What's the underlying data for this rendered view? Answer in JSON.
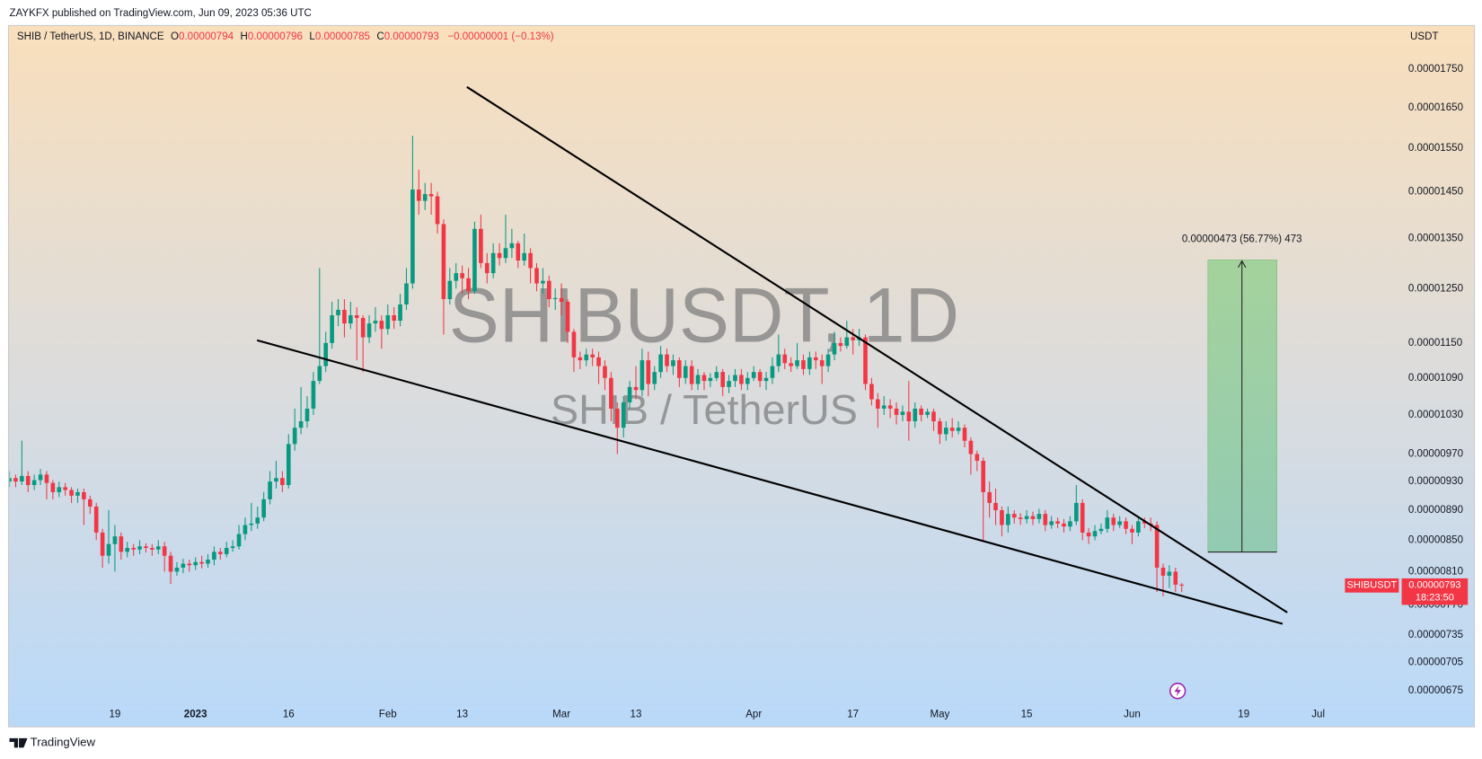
{
  "header": {
    "publisher": "ZAYKFX published on TradingView.com, Jun 09, 2023 05:36 UTC",
    "symbol": "SHIB / TetherUS, 1D, BINANCE",
    "fields": [
      {
        "key": "O",
        "value": "0.00000794"
      },
      {
        "key": "H",
        "value": "0.00000796"
      },
      {
        "key": "L",
        "value": "0.00000785"
      },
      {
        "key": "C",
        "value": "0.00000793"
      }
    ],
    "change": "−0.00000001 (−0.13%)",
    "currency": "USDT"
  },
  "watermark": {
    "ticker": "SHIBUSDT, 1D",
    "name": "SHIB / TetherUS"
  },
  "price_tag": {
    "symbol": "SHIBUSDT",
    "price": "0.00000793",
    "countdown": "18:23:50"
  },
  "measure_label": "0.00000473 (56.77%) 473",
  "footer": {
    "brand": "TradingView"
  },
  "chart_data": {
    "type": "candlestick",
    "log_scale": true,
    "grid": false,
    "up_color": "#089981",
    "down_color": "#f23645",
    "xlim": [
      "2022-12-02",
      "2023-07-14"
    ],
    "ylim": [
      6.63e-06,
      1.871e-05
    ],
    "xticks": [
      {
        "value": "2022-12-19",
        "label": "19"
      },
      {
        "value": "2023-01-01",
        "label": "2023",
        "bold": true
      },
      {
        "value": "2023-01-16",
        "label": "16"
      },
      {
        "value": "2023-02-01",
        "label": "Feb"
      },
      {
        "value": "2023-02-13",
        "label": "13"
      },
      {
        "value": "2023-03-01",
        "label": "Mar"
      },
      {
        "value": "2023-03-13",
        "label": "13"
      },
      {
        "value": "2023-04-01",
        "label": "Apr"
      },
      {
        "value": "2023-04-17",
        "label": "17"
      },
      {
        "value": "2023-05-01",
        "label": "May"
      },
      {
        "value": "2023-05-15",
        "label": "15"
      },
      {
        "value": "2023-06-01",
        "label": "Jun"
      },
      {
        "value": "2023-06-19",
        "label": "19"
      },
      {
        "value": "2023-07-01",
        "label": "Jul"
      }
    ],
    "yticks": [
      {
        "value": 1.75e-05,
        "label": "0.00001750"
      },
      {
        "value": 1.65e-05,
        "label": "0.00001650"
      },
      {
        "value": 1.55e-05,
        "label": "0.00001550"
      },
      {
        "value": 1.45e-05,
        "label": "0.00001450"
      },
      {
        "value": 1.35e-05,
        "label": "0.00001350"
      },
      {
        "value": 1.25e-05,
        "label": "0.00001250"
      },
      {
        "value": 1.15e-05,
        "label": "0.00001150"
      },
      {
        "value": 1.09e-05,
        "label": "0.00001090"
      },
      {
        "value": 1.03e-05,
        "label": "0.00001030"
      },
      {
        "value": 9.7e-06,
        "label": "0.00000970"
      },
      {
        "value": 9.3e-06,
        "label": "0.00000930"
      },
      {
        "value": 8.9e-06,
        "label": "0.00000890"
      },
      {
        "value": 8.5e-06,
        "label": "0.00000850"
      },
      {
        "value": 8.1e-06,
        "label": "0.00000810"
      },
      {
        "value": 7.7e-06,
        "label": "0.00000770"
      },
      {
        "value": 7.35e-06,
        "label": "0.00000735"
      },
      {
        "value": 7.05e-06,
        "label": "0.00000705"
      },
      {
        "value": 6.75e-06,
        "label": "0.00000675"
      }
    ],
    "x": [
      "2022-12-02",
      "2022-12-03",
      "2022-12-04",
      "2022-12-05",
      "2022-12-06",
      "2022-12-07",
      "2022-12-08",
      "2022-12-09",
      "2022-12-10",
      "2022-12-11",
      "2022-12-12",
      "2022-12-13",
      "2022-12-14",
      "2022-12-15",
      "2022-12-16",
      "2022-12-17",
      "2022-12-18",
      "2022-12-19",
      "2022-12-20",
      "2022-12-21",
      "2022-12-22",
      "2022-12-23",
      "2022-12-24",
      "2022-12-25",
      "2022-12-26",
      "2022-12-27",
      "2022-12-28",
      "2022-12-29",
      "2022-12-30",
      "2022-12-31",
      "2023-01-01",
      "2023-01-02",
      "2023-01-03",
      "2023-01-04",
      "2023-01-05",
      "2023-01-06",
      "2023-01-07",
      "2023-01-08",
      "2023-01-09",
      "2023-01-10",
      "2023-01-11",
      "2023-01-12",
      "2023-01-13",
      "2023-01-14",
      "2023-01-15",
      "2023-01-16",
      "2023-01-17",
      "2023-01-18",
      "2023-01-19",
      "2023-01-20",
      "2023-01-21",
      "2023-01-22",
      "2023-01-23",
      "2023-01-24",
      "2023-01-25",
      "2023-01-26",
      "2023-01-27",
      "2023-01-28",
      "2023-01-29",
      "2023-01-30",
      "2023-01-31",
      "2023-02-01",
      "2023-02-02",
      "2023-02-03",
      "2023-02-04",
      "2023-02-05",
      "2023-02-06",
      "2023-02-07",
      "2023-02-08",
      "2023-02-09",
      "2023-02-10",
      "2023-02-11",
      "2023-02-12",
      "2023-02-13",
      "2023-02-14",
      "2023-02-15",
      "2023-02-16",
      "2023-02-17",
      "2023-02-18",
      "2023-02-19",
      "2023-02-20",
      "2023-02-21",
      "2023-02-22",
      "2023-02-23",
      "2023-02-24",
      "2023-02-25",
      "2023-02-26",
      "2023-02-27",
      "2023-02-28",
      "2023-03-01",
      "2023-03-02",
      "2023-03-03",
      "2023-03-04",
      "2023-03-05",
      "2023-03-06",
      "2023-03-07",
      "2023-03-08",
      "2023-03-09",
      "2023-03-10",
      "2023-03-11",
      "2023-03-12",
      "2023-03-13",
      "2023-03-14",
      "2023-03-15",
      "2023-03-16",
      "2023-03-17",
      "2023-03-18",
      "2023-03-19",
      "2023-03-20",
      "2023-03-21",
      "2023-03-22",
      "2023-03-23",
      "2023-03-24",
      "2023-03-25",
      "2023-03-26",
      "2023-03-27",
      "2023-03-28",
      "2023-03-29",
      "2023-03-30",
      "2023-03-31",
      "2023-04-01",
      "2023-04-02",
      "2023-04-03",
      "2023-04-04",
      "2023-04-05",
      "2023-04-06",
      "2023-04-07",
      "2023-04-08",
      "2023-04-09",
      "2023-04-10",
      "2023-04-11",
      "2023-04-12",
      "2023-04-13",
      "2023-04-14",
      "2023-04-15",
      "2023-04-16",
      "2023-04-17",
      "2023-04-18",
      "2023-04-19",
      "2023-04-20",
      "2023-04-21",
      "2023-04-22",
      "2023-04-23",
      "2023-04-24",
      "2023-04-25",
      "2023-04-26",
      "2023-04-27",
      "2023-04-28",
      "2023-04-29",
      "2023-04-30",
      "2023-05-01",
      "2023-05-02",
      "2023-05-03",
      "2023-05-04",
      "2023-05-05",
      "2023-05-06",
      "2023-05-07",
      "2023-05-08",
      "2023-05-09",
      "2023-05-10",
      "2023-05-11",
      "2023-05-12",
      "2023-05-13",
      "2023-05-14",
      "2023-05-15",
      "2023-05-16",
      "2023-05-17",
      "2023-05-18",
      "2023-05-19",
      "2023-05-20",
      "2023-05-21",
      "2023-05-22",
      "2023-05-23",
      "2023-05-24",
      "2023-05-25",
      "2023-05-26",
      "2023-05-27",
      "2023-05-28",
      "2023-05-29",
      "2023-05-30",
      "2023-05-31",
      "2023-06-01",
      "2023-06-02",
      "2023-06-03",
      "2023-06-04",
      "2023-06-05",
      "2023-06-06",
      "2023-06-07",
      "2023-06-08",
      "2023-06-09"
    ],
    "open": [
      9.3e-06,
      9.35e-06,
      9.3e-06,
      9.38e-06,
      9.25e-06,
      9.32e-06,
      9.4e-06,
      9.28e-06,
      9.15e-06,
      9.22e-06,
      9.18e-06,
      9.1e-06,
      9.15e-06,
      9.05e-06,
      8.95e-06,
      8.6e-06,
      8.3e-06,
      8.45e-06,
      8.55e-06,
      8.35e-06,
      8.4e-06,
      8.38e-06,
      8.42e-06,
      8.4e-06,
      8.38e-06,
      8.42e-06,
      8.3e-06,
      8.1e-06,
      8.15e-06,
      8.2e-06,
      8.18e-06,
      8.22e-06,
      8.2e-06,
      8.25e-06,
      8.35e-06,
      8.32e-06,
      8.4e-06,
      8.42e-06,
      8.58e-06,
      8.7e-06,
      8.72e-06,
      8.8e-06,
      9.05e-06,
      9.3e-06,
      9.35e-06,
      9.25e-06,
      9.85e-06,
      1.01e-05,
      1.02e-05,
      1.04e-05,
      1.085e-05,
      1.11e-05,
      1.15e-05,
      1.2e-05,
      1.21e-05,
      1.185e-05,
      1.2e-05,
      1.195e-05,
      1.16e-05,
      1.185e-05,
      1.19e-05,
      1.175e-05,
      1.2e-05,
      1.19e-05,
      1.22e-05,
      1.26e-05,
      1.455e-05,
      1.43e-05,
      1.445e-05,
      1.44e-05,
      1.38e-05,
      1.23e-05,
      1.265e-05,
      1.28e-05,
      1.27e-05,
      1.245e-05,
      1.37e-05,
      1.3e-05,
      1.28e-05,
      1.32e-05,
      1.31e-05,
      1.33e-05,
      1.34e-05,
      1.305e-05,
      1.32e-05,
      1.29e-05,
      1.26e-05,
      1.265e-05,
      1.23e-05,
      1.232e-05,
      1.225e-05,
      1.17e-05,
      1.125e-05,
      1.12e-05,
      1.13e-05,
      1.125e-05,
      1.11e-05,
      1.09e-05,
      1.04e-05,
      1.01e-05,
      1.05e-05,
      1.075e-05,
      1.07e-05,
      1.12e-05,
      1.08e-05,
      1.1e-05,
      1.13e-05,
      1.11e-05,
      1.12e-05,
      1.09e-05,
      1.11e-05,
      1.08e-05,
      1.095e-05,
      1.085e-05,
      1.09e-05,
      1.1e-05,
      1.075e-05,
      1.085e-05,
      1.095e-05,
      1.08e-05,
      1.09e-05,
      1.1e-05,
      1.085e-05,
      1.09e-05,
      1.11e-05,
      1.13e-05,
      1.115e-05,
      1.11e-05,
      1.12e-05,
      1.105e-05,
      1.125e-05,
      1.12e-05,
      1.11e-05,
      1.13e-05,
      1.15e-05,
      1.145e-05,
      1.16e-05,
      1.155e-05,
      1.16e-05,
      1.08e-05,
      1.055e-05,
      1.04e-05,
      1.045e-05,
      1.04e-05,
      1.03e-05,
      1.035e-05,
      1.02e-05,
      1.04e-05,
      1.03e-05,
      1.035e-05,
      1.02e-05,
      1e-05,
      1.01e-05,
      1.005e-05,
      1.01e-05,
      9.9e-06,
      9.7e-06,
      9.6e-06,
      9.15e-06,
      9e-06,
      8.9e-06,
      8.7e-06,
      8.85e-06,
      8.8e-06,
      8.78e-06,
      8.82e-06,
      8.78e-06,
      8.85e-06,
      8.7e-06,
      8.75e-06,
      8.72e-06,
      8.68e-06,
      8.75e-06,
      9e-06,
      8.6e-06,
      8.55e-06,
      8.62e-06,
      8.65e-06,
      8.8e-06,
      8.7e-06,
      8.75e-06,
      8.65e-06,
      8.6e-06,
      8.75e-06,
      8.72e-06,
      8.7e-06,
      8.15e-06,
      8.05e-06,
      8.1e-06,
      7.94e-06
    ],
    "high": [
      9.45e-06,
      9.4e-06,
      9.9e-06,
      9.45e-06,
      9.4e-06,
      9.48e-06,
      9.45e-06,
      9.32e-06,
      9.3e-06,
      9.28e-06,
      9.22e-06,
      9.2e-06,
      9.2e-06,
      9.1e-06,
      9e-06,
      8.65e-06,
      8.9e-06,
      8.7e-06,
      8.6e-06,
      8.48e-06,
      8.45e-06,
      8.5e-06,
      8.46e-06,
      8.45e-06,
      8.5e-06,
      8.48e-06,
      8.35e-06,
      8.22e-06,
      8.26e-06,
      8.25e-06,
      8.28e-06,
      8.3e-06,
      8.32e-06,
      8.42e-06,
      8.4e-06,
      8.48e-06,
      8.5e-06,
      8.7e-06,
      8.8e-06,
      9e-06,
      8.95e-06,
      9.15e-06,
      9.45e-06,
      9.6e-06,
      9.45e-06,
      1e-05,
      1.04e-05,
      1.075e-05,
      1.06e-05,
      1.1e-05,
      1.29e-05,
      1.17e-05,
      1.225e-05,
      1.23e-05,
      1.23e-05,
      1.225e-05,
      1.215e-05,
      1.2e-05,
      1.2e-05,
      1.215e-05,
      1.2e-05,
      1.22e-05,
      1.215e-05,
      1.24e-05,
      1.29e-05,
      1.58e-05,
      1.5e-05,
      1.47e-05,
      1.47e-05,
      1.45e-05,
      1.39e-05,
      1.29e-05,
      1.3e-05,
      1.295e-05,
      1.29e-05,
      1.385e-05,
      1.4e-05,
      1.32e-05,
      1.34e-05,
      1.34e-05,
      1.4e-05,
      1.37e-05,
      1.345e-05,
      1.36e-05,
      1.33e-05,
      1.3e-05,
      1.29e-05,
      1.275e-05,
      1.25e-05,
      1.26e-05,
      1.23e-05,
      1.175e-05,
      1.135e-05,
      1.14e-05,
      1.14e-05,
      1.135e-05,
      1.12e-05,
      1.1e-05,
      1.05e-05,
      1.06e-05,
      1.085e-05,
      1.11e-05,
      1.14e-05,
      1.135e-05,
      1.11e-05,
      1.145e-05,
      1.14e-05,
      1.13e-05,
      1.125e-05,
      1.12e-05,
      1.12e-05,
      1.105e-05,
      1.1e-05,
      1.098e-05,
      1.11e-05,
      1.105e-05,
      1.095e-05,
      1.105e-05,
      1.105e-05,
      1.1e-05,
      1.11e-05,
      1.105e-05,
      1.1e-05,
      1.125e-05,
      1.165e-05,
      1.14e-05,
      1.125e-05,
      1.15e-05,
      1.13e-05,
      1.135e-05,
      1.135e-05,
      1.13e-05,
      1.14e-05,
      1.17e-05,
      1.16e-05,
      1.19e-05,
      1.175e-05,
      1.175e-05,
      1.165e-05,
      1.09e-05,
      1.065e-05,
      1.06e-05,
      1.055e-05,
      1.05e-05,
      1.045e-05,
      1.085e-05,
      1.05e-05,
      1.045e-05,
      1.04e-05,
      1.04e-05,
      1.025e-05,
      1.02e-05,
      1.025e-05,
      1.02e-05,
      1.015e-05,
      9.95e-06,
      9.75e-06,
      9.65e-06,
      9.3e-06,
      9.2e-06,
      8.95e-06,
      8.95e-06,
      8.9e-06,
      8.86e-06,
      8.9e-06,
      8.88e-06,
      8.92e-06,
      8.9e-06,
      8.82e-06,
      8.8e-06,
      8.78e-06,
      8.82e-06,
      9.25e-06,
      9.05e-06,
      8.66e-06,
      8.7e-06,
      8.72e-06,
      8.9e-06,
      8.85e-06,
      8.82e-06,
      8.8e-06,
      8.7e-06,
      8.82e-06,
      8.8e-06,
      8.8e-06,
      8.75e-06,
      8.2e-06,
      8.18e-06,
      8.15e-06,
      7.96e-06
    ],
    "low": [
      9.22e-06,
      9.22e-06,
      9.25e-06,
      9.15e-06,
      9.18e-06,
      9.25e-06,
      9.05e-06,
      9.05e-06,
      9.08e-06,
      9.1e-06,
      9e-06,
      9e-06,
      8.7e-06,
      8.85e-06,
      8.5e-06,
      8.15e-06,
      8.2e-06,
      8.1e-06,
      8.25e-06,
      8.28e-06,
      8.3e-06,
      8.32e-06,
      8.34e-06,
      8.3e-06,
      8.32e-06,
      8.1e-06,
      7.95e-06,
      8.05e-06,
      8.08e-06,
      8.1e-06,
      8.12e-06,
      8.14e-06,
      8.15e-06,
      8.18e-06,
      8.25e-06,
      8.28e-06,
      8.35e-06,
      8.38e-06,
      8.5e-06,
      8.62e-06,
      8.65e-06,
      8.75e-06,
      8.98e-06,
      9.2e-06,
      9.15e-06,
      9.2e-06,
      9.75e-06,
      1e-05,
      1.01e-05,
      1.03e-05,
      1.08e-05,
      1.1e-05,
      1.14e-05,
      1.18e-05,
      1.16e-05,
      1.175e-05,
      1.12e-05,
      1.1e-05,
      1.15e-05,
      1.17e-05,
      1.14e-05,
      1.165e-05,
      1.175e-05,
      1.18e-05,
      1.21e-05,
      1.25e-05,
      1.4e-05,
      1.41e-05,
      1.4e-05,
      1.36e-05,
      1.165e-05,
      1.22e-05,
      1.25e-05,
      1.24e-05,
      1.23e-05,
      1.24e-05,
      1.29e-05,
      1.26e-05,
      1.27e-05,
      1.295e-05,
      1.3e-05,
      1.31e-05,
      1.29e-05,
      1.295e-05,
      1.26e-05,
      1.245e-05,
      1.24e-05,
      1.215e-05,
      1.21e-05,
      1.2e-05,
      1.15e-05,
      1.1e-05,
      1.105e-05,
      1.11e-05,
      1.11e-05,
      1.08e-05,
      1.07e-05,
      1.02e-05,
      9.7e-06,
      9.95e-06,
      1.04e-05,
      1.055e-05,
      1.06e-05,
      1.06e-05,
      1.07e-05,
      1.09e-05,
      1.1e-05,
      1.095e-05,
      1.075e-05,
      1.08e-05,
      1.07e-05,
      1.07e-05,
      1.07e-05,
      1.075e-05,
      1.085e-05,
      1.06e-05,
      1.065e-05,
      1.075e-05,
      1.07e-05,
      1.07e-05,
      1.085e-05,
      1.075e-05,
      1.07e-05,
      1.08e-05,
      1.1e-05,
      1.105e-05,
      1.1e-05,
      1.105e-05,
      1.095e-05,
      1.095e-05,
      1.105e-05,
      1.08e-05,
      1.1e-05,
      1.12e-05,
      1.135e-05,
      1.14e-05,
      1.13e-05,
      1.145e-05,
      1.07e-05,
      1.045e-05,
      1.01e-05,
      1.03e-05,
      1.025e-05,
      1.015e-05,
      1.02e-05,
      9.9e-06,
      1.01e-05,
      1.02e-05,
      1.025e-05,
      1.005e-05,
      9.85e-06,
      9.9e-06,
      9.95e-06,
      1e-05,
      9.8e-06,
      9.4e-06,
      9.45e-06,
      8.5e-06,
      8.8e-06,
      8.7e-06,
      8.55e-06,
      8.6e-06,
      8.72e-06,
      8.7e-06,
      8.72e-06,
      8.7e-06,
      8.72e-06,
      8.62e-06,
      8.65e-06,
      8.66e-06,
      8.6e-06,
      8.62e-06,
      8.7e-06,
      8.5e-06,
      8.45e-06,
      8.5e-06,
      8.58e-06,
      8.6e-06,
      8.62e-06,
      8.66e-06,
      8.58e-06,
      8.45e-06,
      8.55e-06,
      8.66e-06,
      8.62e-06,
      7.85e-06,
      7.8e-06,
      7.9e-06,
      7.85e-06,
      7.85e-06
    ],
    "close": [
      9.35e-06,
      9.3e-06,
      9.38e-06,
      9.25e-06,
      9.32e-06,
      9.4e-06,
      9.28e-06,
      9.15e-06,
      9.22e-06,
      9.18e-06,
      9.1e-06,
      9.15e-06,
      9.05e-06,
      8.95e-06,
      8.6e-06,
      8.3e-06,
      8.45e-06,
      8.55e-06,
      8.35e-06,
      8.4e-06,
      8.38e-06,
      8.42e-06,
      8.4e-06,
      8.38e-06,
      8.42e-06,
      8.3e-06,
      8.1e-06,
      8.15e-06,
      8.2e-06,
      8.18e-06,
      8.22e-06,
      8.2e-06,
      8.25e-06,
      8.35e-06,
      8.32e-06,
      8.4e-06,
      8.42e-06,
      8.58e-06,
      8.7e-06,
      8.72e-06,
      8.8e-06,
      9.05e-06,
      9.3e-06,
      9.35e-06,
      9.25e-06,
      9.85e-06,
      1.01e-05,
      1.02e-05,
      1.04e-05,
      1.085e-05,
      1.11e-05,
      1.15e-05,
      1.2e-05,
      1.21e-05,
      1.185e-05,
      1.2e-05,
      1.195e-05,
      1.16e-05,
      1.185e-05,
      1.19e-05,
      1.175e-05,
      1.2e-05,
      1.19e-05,
      1.22e-05,
      1.26e-05,
      1.455e-05,
      1.43e-05,
      1.445e-05,
      1.44e-05,
      1.38e-05,
      1.23e-05,
      1.265e-05,
      1.28e-05,
      1.27e-05,
      1.245e-05,
      1.37e-05,
      1.3e-05,
      1.28e-05,
      1.32e-05,
      1.31e-05,
      1.33e-05,
      1.34e-05,
      1.305e-05,
      1.32e-05,
      1.29e-05,
      1.26e-05,
      1.265e-05,
      1.23e-05,
      1.232e-05,
      1.225e-05,
      1.17e-05,
      1.125e-05,
      1.12e-05,
      1.13e-05,
      1.125e-05,
      1.11e-05,
      1.09e-05,
      1.04e-05,
      1.01e-05,
      1.05e-05,
      1.075e-05,
      1.07e-05,
      1.12e-05,
      1.08e-05,
      1.1e-05,
      1.13e-05,
      1.11e-05,
      1.12e-05,
      1.09e-05,
      1.11e-05,
      1.08e-05,
      1.095e-05,
      1.085e-05,
      1.09e-05,
      1.1e-05,
      1.075e-05,
      1.085e-05,
      1.095e-05,
      1.08e-05,
      1.09e-05,
      1.1e-05,
      1.085e-05,
      1.09e-05,
      1.11e-05,
      1.13e-05,
      1.115e-05,
      1.11e-05,
      1.12e-05,
      1.105e-05,
      1.125e-05,
      1.12e-05,
      1.11e-05,
      1.13e-05,
      1.15e-05,
      1.145e-05,
      1.16e-05,
      1.155e-05,
      1.16e-05,
      1.08e-05,
      1.055e-05,
      1.04e-05,
      1.045e-05,
      1.04e-05,
      1.03e-05,
      1.035e-05,
      1.02e-05,
      1.04e-05,
      1.03e-05,
      1.035e-05,
      1.02e-05,
      1e-05,
      1.01e-05,
      1.005e-05,
      1.01e-05,
      9.9e-06,
      9.7e-06,
      9.6e-06,
      9.15e-06,
      9e-06,
      8.9e-06,
      8.7e-06,
      8.85e-06,
      8.8e-06,
      8.78e-06,
      8.82e-06,
      8.78e-06,
      8.85e-06,
      8.7e-06,
      8.75e-06,
      8.72e-06,
      8.68e-06,
      8.75e-06,
      9e-06,
      8.6e-06,
      8.55e-06,
      8.62e-06,
      8.65e-06,
      8.8e-06,
      8.7e-06,
      8.75e-06,
      8.65e-06,
      8.6e-06,
      8.75e-06,
      8.72e-06,
      8.7e-06,
      8.15e-06,
      8.05e-06,
      8.1e-06,
      7.94e-06,
      7.93e-06
    ]
  }
}
